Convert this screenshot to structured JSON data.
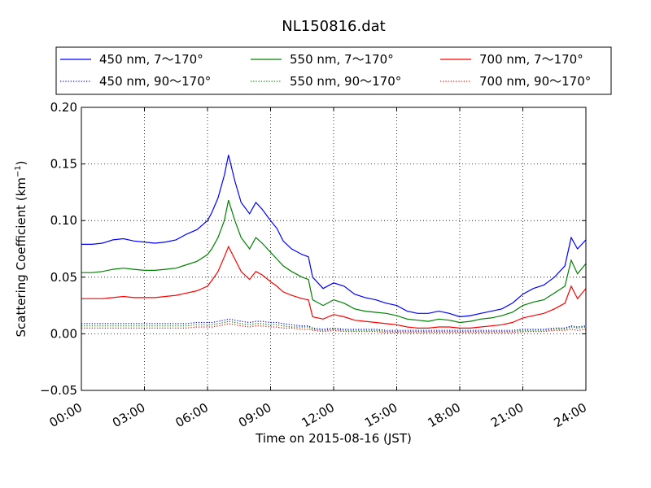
{
  "chart_data": {
    "type": "line",
    "title": "NL150816.dat",
    "xlabel": "Time on 2015-08-16 (JST)",
    "ylabel_main": "Scattering Coefficient (km",
    "ylabel_sup": "−1",
    "ylabel_end": ")",
    "xlim": [
      0,
      24
    ],
    "ylim": [
      -0.05,
      0.2
    ],
    "grid": true,
    "legend_placement": "top",
    "x_ticks": [
      {
        "value": 0,
        "label": "00:00"
      },
      {
        "value": 3,
        "label": "03:00"
      },
      {
        "value": 6,
        "label": "06:00"
      },
      {
        "value": 9,
        "label": "09:00"
      },
      {
        "value": 12,
        "label": "12:00"
      },
      {
        "value": 15,
        "label": "15:00"
      },
      {
        "value": 18,
        "label": "18:00"
      },
      {
        "value": 21,
        "label": "21:00"
      },
      {
        "value": 24,
        "label": "24:00"
      }
    ],
    "y_ticks": [
      {
        "value": -0.05,
        "label": "−0.05"
      },
      {
        "value": 0.0,
        "label": "0.00"
      },
      {
        "value": 0.05,
        "label": "0.05"
      },
      {
        "value": 0.1,
        "label": "0.10"
      },
      {
        "value": 0.15,
        "label": "0.15"
      },
      {
        "value": 0.2,
        "label": "0.20"
      }
    ],
    "x": [
      0,
      0.5,
      1,
      1.5,
      2,
      2.5,
      3,
      3.5,
      4,
      4.5,
      5,
      5.5,
      6,
      6.2,
      6.5,
      6.8,
      7,
      7.3,
      7.6,
      8,
      8.3,
      8.6,
      9,
      9.3,
      9.6,
      10,
      10.5,
      10.8,
      11,
      11.5,
      12,
      12.5,
      13,
      13.5,
      14,
      14.5,
      15,
      15.5,
      16,
      16.5,
      17,
      17.5,
      18,
      18.5,
      19,
      19.5,
      20,
      20.5,
      21,
      21.5,
      22,
      22.5,
      23,
      23.3,
      23.6,
      24
    ],
    "series": [
      {
        "name": "450 nm, 7～170°",
        "color": "#0000ff",
        "style": "solid",
        "values": [
          0.079,
          0.079,
          0.08,
          0.083,
          0.084,
          0.082,
          0.081,
          0.08,
          0.081,
          0.083,
          0.088,
          0.092,
          0.1,
          0.107,
          0.12,
          0.14,
          0.158,
          0.135,
          0.116,
          0.106,
          0.116,
          0.11,
          0.1,
          0.093,
          0.082,
          0.075,
          0.07,
          0.068,
          0.05,
          0.04,
          0.045,
          0.042,
          0.035,
          0.032,
          0.03,
          0.027,
          0.025,
          0.02,
          0.018,
          0.018,
          0.02,
          0.018,
          0.015,
          0.016,
          0.018,
          0.02,
          0.022,
          0.027,
          0.035,
          0.04,
          0.043,
          0.05,
          0.06,
          0.085,
          0.075,
          0.083
        ]
      },
      {
        "name": "550 nm, 7～170°",
        "color": "#008000",
        "style": "solid",
        "values": [
          0.054,
          0.054,
          0.055,
          0.057,
          0.058,
          0.057,
          0.056,
          0.056,
          0.057,
          0.058,
          0.061,
          0.064,
          0.07,
          0.075,
          0.085,
          0.1,
          0.118,
          0.1,
          0.085,
          0.075,
          0.085,
          0.08,
          0.072,
          0.066,
          0.06,
          0.055,
          0.05,
          0.048,
          0.03,
          0.025,
          0.03,
          0.027,
          0.022,
          0.02,
          0.019,
          0.018,
          0.016,
          0.013,
          0.012,
          0.011,
          0.013,
          0.012,
          0.01,
          0.011,
          0.013,
          0.014,
          0.016,
          0.019,
          0.025,
          0.028,
          0.03,
          0.036,
          0.042,
          0.065,
          0.053,
          0.062
        ]
      },
      {
        "name": "700 nm, 7～170°",
        "color": "#ff0000",
        "style": "solid",
        "values": [
          0.031,
          0.031,
          0.031,
          0.032,
          0.033,
          0.032,
          0.032,
          0.032,
          0.033,
          0.034,
          0.036,
          0.038,
          0.042,
          0.047,
          0.055,
          0.068,
          0.077,
          0.066,
          0.055,
          0.048,
          0.055,
          0.052,
          0.046,
          0.042,
          0.037,
          0.034,
          0.031,
          0.03,
          0.015,
          0.013,
          0.017,
          0.015,
          0.012,
          0.011,
          0.01,
          0.009,
          0.008,
          0.006,
          0.005,
          0.005,
          0.006,
          0.006,
          0.005,
          0.005,
          0.006,
          0.007,
          0.008,
          0.01,
          0.014,
          0.016,
          0.018,
          0.022,
          0.027,
          0.042,
          0.031,
          0.04
        ]
      },
      {
        "name": "450 nm, 90～170°",
        "color": "#0000ff",
        "style": "dotted",
        "values": [
          0.009,
          0.009,
          0.009,
          0.009,
          0.009,
          0.009,
          0.009,
          0.009,
          0.009,
          0.009,
          0.009,
          0.01,
          0.01,
          0.01,
          0.011,
          0.012,
          0.013,
          0.012,
          0.011,
          0.01,
          0.011,
          0.011,
          0.01,
          0.01,
          0.009,
          0.008,
          0.007,
          0.007,
          0.005,
          0.004,
          0.005,
          0.004,
          0.004,
          0.004,
          0.004,
          0.003,
          0.003,
          0.003,
          0.003,
          0.003,
          0.003,
          0.003,
          0.003,
          0.003,
          0.003,
          0.003,
          0.003,
          0.003,
          0.004,
          0.004,
          0.004,
          0.005,
          0.005,
          0.007,
          0.006,
          0.007
        ]
      },
      {
        "name": "550 nm, 90～170°",
        "color": "#008000",
        "style": "dotted",
        "values": [
          0.007,
          0.007,
          0.007,
          0.007,
          0.007,
          0.007,
          0.007,
          0.007,
          0.007,
          0.007,
          0.007,
          0.008,
          0.008,
          0.008,
          0.009,
          0.01,
          0.011,
          0.01,
          0.009,
          0.008,
          0.009,
          0.009,
          0.008,
          0.008,
          0.007,
          0.006,
          0.006,
          0.006,
          0.004,
          0.003,
          0.004,
          0.003,
          0.003,
          0.003,
          0.003,
          0.002,
          0.002,
          0.002,
          0.002,
          0.002,
          0.002,
          0.002,
          0.002,
          0.002,
          0.002,
          0.002,
          0.002,
          0.002,
          0.003,
          0.003,
          0.003,
          0.004,
          0.004,
          0.006,
          0.005,
          0.006
        ]
      },
      {
        "name": "700 nm, 90～170°",
        "color": "#ff0000",
        "style": "dotted",
        "values": [
          0.005,
          0.005,
          0.005,
          0.005,
          0.005,
          0.005,
          0.005,
          0.005,
          0.005,
          0.005,
          0.005,
          0.006,
          0.006,
          0.006,
          0.007,
          0.008,
          0.009,
          0.008,
          0.007,
          0.006,
          0.007,
          0.007,
          0.006,
          0.006,
          0.005,
          0.005,
          0.004,
          0.004,
          0.003,
          0.002,
          0.003,
          0.002,
          0.002,
          0.002,
          0.002,
          0.001,
          0.001,
          0.001,
          0.001,
          0.001,
          0.001,
          0.001,
          0.001,
          0.001,
          0.001,
          0.001,
          0.001,
          0.001,
          0.002,
          0.002,
          0.002,
          0.003,
          0.003,
          0.004,
          0.003,
          0.004
        ]
      }
    ]
  }
}
